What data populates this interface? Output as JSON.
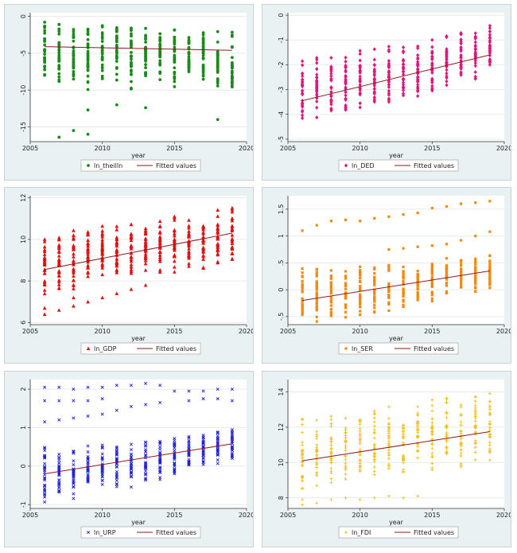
{
  "chart_data": [
    {
      "type": "scatter",
      "var": "ln_theilln",
      "xlabel": "year",
      "ylim": [
        -17,
        0.5
      ],
      "yticks": [
        0,
        -5,
        -10,
        -15
      ],
      "ytick_labels": [
        "0",
        "-5",
        "-10",
        "-15"
      ],
      "xlim": [
        2005,
        2020
      ],
      "xticks": [
        2005,
        2010,
        2015,
        2020
      ],
      "marker": "circle",
      "color": "#1a8a1a",
      "fit": [
        [
          2006,
          -4.1
        ],
        [
          2019,
          -4.6
        ]
      ],
      "legend": [
        "ln_theilln",
        "Fitted values"
      ],
      "ybands": [
        [
          2006,
          -8,
          -0.5
        ],
        [
          2007,
          -9,
          -1
        ],
        [
          2008,
          -9.5,
          -1
        ],
        [
          2009,
          -10,
          -1
        ],
        [
          2010,
          -9,
          -1
        ],
        [
          2011,
          -9,
          -1
        ],
        [
          2012,
          -10,
          -1
        ],
        [
          2013,
          -9,
          -1.5
        ],
        [
          2014,
          -9,
          -1.5
        ],
        [
          2015,
          -10,
          -1.5
        ],
        [
          2016,
          -9,
          -2
        ],
        [
          2017,
          -9.5,
          -2
        ],
        [
          2018,
          -10,
          -2
        ],
        [
          2019,
          -10,
          -2
        ]
      ],
      "outliers": [
        [
          2007,
          -16.4
        ],
        [
          2008,
          -15.5
        ],
        [
          2009,
          -16
        ],
        [
          2009,
          -12.7
        ],
        [
          2011,
          -12
        ],
        [
          2013,
          -12.4
        ],
        [
          2018,
          -14
        ]
      ]
    },
    {
      "type": "scatter",
      "var": "ln_DED",
      "xlabel": "year",
      "ylim": [
        -5.1,
        0.1
      ],
      "yticks": [
        0,
        -1,
        -2,
        -3,
        -4,
        -5
      ],
      "ytick_labels": [
        "0",
        "-1",
        "-2",
        "-3",
        "-4",
        "-5"
      ],
      "xlim": [
        2005,
        2020
      ],
      "xticks": [
        2005,
        2010,
        2015,
        2020
      ],
      "marker": "diamond",
      "color": "#e0157a",
      "fit": [
        [
          2006,
          -3.45
        ],
        [
          2019,
          -1.6
        ]
      ],
      "legend": [
        "ln_DED",
        "Fitted values"
      ],
      "ybands": [
        [
          2006,
          -4.6,
          -1.7
        ],
        [
          2007,
          -4.2,
          -1.6
        ],
        [
          2008,
          -4,
          -1.6
        ],
        [
          2009,
          -3.9,
          -1.5
        ],
        [
          2010,
          -3.8,
          -1.4
        ],
        [
          2011,
          -3.7,
          -1.3
        ],
        [
          2012,
          -3.6,
          -1.2
        ],
        [
          2013,
          -3.4,
          -1.1
        ],
        [
          2014,
          -3.3,
          -1.0
        ],
        [
          2015,
          -3.1,
          -0.9
        ],
        [
          2016,
          -3.0,
          -0.8
        ],
        [
          2017,
          -2.8,
          -0.6
        ],
        [
          2018,
          -2.6,
          -0.4
        ],
        [
          2019,
          -2.5,
          -0.1
        ]
      ],
      "outliers": []
    },
    {
      "type": "scatter",
      "var": "ln_GDP",
      "xlabel": "year",
      "ylim": [
        5.9,
        12.1
      ],
      "yticks": [
        6,
        8,
        10,
        12
      ],
      "ytick_labels": [
        "6",
        "8",
        "10",
        "12"
      ],
      "xlim": [
        2005,
        2020
      ],
      "xticks": [
        2005,
        2010,
        2015,
        2020
      ],
      "marker": "triangle",
      "color": "#e01010",
      "fit": [
        [
          2006,
          8.55
        ],
        [
          2019,
          10.3
        ]
      ],
      "legend": [
        "ln_GDP",
        "Fitted values"
      ],
      "ybands": [
        [
          2006,
          7.2,
          10.2
        ],
        [
          2007,
          7.4,
          10.3
        ],
        [
          2008,
          7.6,
          10.5
        ],
        [
          2009,
          7.8,
          10.6
        ],
        [
          2010,
          7.9,
          10.7
        ],
        [
          2011,
          8.0,
          10.8
        ],
        [
          2012,
          8.1,
          10.9
        ],
        [
          2013,
          8.2,
          11.0
        ],
        [
          2014,
          8.3,
          11.1
        ],
        [
          2015,
          8.4,
          11.2
        ],
        [
          2016,
          8.5,
          11.3
        ],
        [
          2017,
          8.6,
          11.4
        ],
        [
          2018,
          8.7,
          11.5
        ],
        [
          2019,
          8.8,
          11.6
        ]
      ],
      "outliers": [
        [
          2006,
          6.4
        ],
        [
          2006,
          6.7
        ],
        [
          2007,
          6.6
        ],
        [
          2008,
          6.8
        ],
        [
          2008,
          7.2
        ],
        [
          2009,
          7.0
        ],
        [
          2010,
          7.2
        ],
        [
          2011,
          7.4
        ],
        [
          2012,
          7.6
        ],
        [
          2013,
          7.8
        ]
      ]
    },
    {
      "type": "scatter",
      "var": "ln_SER",
      "xlabel": "year",
      "ylim": [
        -0.65,
        1.75
      ],
      "yticks": [
        -0.5,
        0,
        0.5,
        1,
        1.5
      ],
      "ytick_labels": [
        "-.5",
        "0",
        ".5",
        "1",
        "1.5"
      ],
      "xlim": [
        2005,
        2020
      ],
      "xticks": [
        2005,
        2010,
        2015,
        2020
      ],
      "marker": "square",
      "color": "#f08a10",
      "fit": [
        [
          2006,
          -0.2
        ],
        [
          2019,
          0.35
        ]
      ],
      "legend": [
        "ln_SER",
        "Fitted values"
      ],
      "ybands": [
        [
          2006,
          -0.6,
          0.4
        ],
        [
          2007,
          -0.6,
          0.4
        ],
        [
          2008,
          -0.55,
          0.4
        ],
        [
          2009,
          -0.55,
          0.45
        ],
        [
          2010,
          -0.55,
          0.5
        ],
        [
          2011,
          -0.55,
          0.5
        ],
        [
          2012,
          -0.45,
          0.5
        ],
        [
          2013,
          -0.4,
          0.5
        ],
        [
          2014,
          -0.35,
          0.5
        ],
        [
          2015,
          -0.25,
          0.55
        ],
        [
          2016,
          -0.1,
          0.6
        ],
        [
          2017,
          0.0,
          0.6
        ],
        [
          2018,
          -0.05,
          0.6
        ],
        [
          2019,
          0.0,
          0.65
        ]
      ],
      "outliers": [
        [
          2006,
          1.1
        ],
        [
          2007,
          1.2
        ],
        [
          2008,
          1.28
        ],
        [
          2009,
          1.3
        ],
        [
          2010,
          1.28
        ],
        [
          2011,
          1.33
        ],
        [
          2012,
          1.36
        ],
        [
          2013,
          1.4
        ],
        [
          2014,
          1.43
        ],
        [
          2015,
          1.52
        ],
        [
          2016,
          1.55
        ],
        [
          2017,
          1.6
        ],
        [
          2018,
          1.62
        ],
        [
          2019,
          1.65
        ],
        [
          2012,
          0.75
        ],
        [
          2013,
          0.77
        ],
        [
          2014,
          0.8
        ],
        [
          2015,
          0.82
        ],
        [
          2016,
          0.85
        ],
        [
          2017,
          0.92
        ],
        [
          2018,
          1.0
        ],
        [
          2019,
          1.08
        ]
      ]
    },
    {
      "type": "scatter",
      "var": "ln_URP",
      "xlabel": "year",
      "ylim": [
        -1.1,
        2.25
      ],
      "yticks": [
        -1,
        0,
        1,
        2
      ],
      "ytick_labels": [
        "-1",
        "0",
        "1",
        "2"
      ],
      "xlim": [
        2005,
        2020
      ],
      "xticks": [
        2005,
        2010,
        2015,
        2020
      ],
      "marker": "x",
      "color": "#2222dd",
      "fit": [
        [
          2006,
          -0.2
        ],
        [
          2019,
          0.58
        ]
      ],
      "legend": [
        "ln_URP",
        "Fitted values"
      ],
      "ybands": [
        [
          2006,
          -0.95,
          0.55
        ],
        [
          2007,
          -0.9,
          0.5
        ],
        [
          2008,
          -0.85,
          0.5
        ],
        [
          2009,
          -0.8,
          0.55
        ],
        [
          2010,
          -0.7,
          0.55
        ],
        [
          2011,
          -0.6,
          0.6
        ],
        [
          2012,
          -0.55,
          0.6
        ],
        [
          2013,
          -0.45,
          0.65
        ],
        [
          2014,
          -0.35,
          0.7
        ],
        [
          2015,
          -0.2,
          0.75
        ],
        [
          2016,
          -0.1,
          0.8
        ],
        [
          2017,
          -0.05,
          0.85
        ],
        [
          2018,
          0.0,
          0.9
        ],
        [
          2019,
          0.05,
          0.95
        ]
      ],
      "outliers": [
        [
          2006,
          2.05
        ],
        [
          2007,
          2.05
        ],
        [
          2008,
          2.0
        ],
        [
          2009,
          2.05
        ],
        [
          2010,
          2.05
        ],
        [
          2011,
          2.1
        ],
        [
          2012,
          2.1
        ],
        [
          2013,
          2.15
        ],
        [
          2014,
          2.1
        ],
        [
          2015,
          1.95
        ],
        [
          2016,
          1.95
        ],
        [
          2017,
          1.95
        ],
        [
          2018,
          2.0
        ],
        [
          2019,
          2.0
        ],
        [
          2006,
          1.7
        ],
        [
          2007,
          1.7
        ],
        [
          2008,
          1.7
        ],
        [
          2009,
          1.7
        ],
        [
          2010,
          1.75
        ],
        [
          2006,
          1.15
        ],
        [
          2007,
          1.2
        ],
        [
          2008,
          1.25
        ],
        [
          2009,
          1.3
        ],
        [
          2010,
          1.35
        ],
        [
          2011,
          1.45
        ],
        [
          2012,
          1.55
        ],
        [
          2013,
          1.6
        ],
        [
          2014,
          1.65
        ],
        [
          2016,
          1.7
        ],
        [
          2017,
          1.75
        ],
        [
          2018,
          1.75
        ],
        [
          2019,
          1.7
        ]
      ]
    },
    {
      "type": "scatter",
      "var": "ln_FDI",
      "xlabel": "year",
      "ylim": [
        7.4,
        14.7
      ],
      "yticks": [
        8,
        10,
        12,
        14
      ],
      "ytick_labels": [
        "8",
        "10",
        "12",
        "14"
      ],
      "xlim": [
        2005,
        2020
      ],
      "xticks": [
        2005,
        2010,
        2015,
        2020
      ],
      "marker": "plus",
      "color": "#f0c020",
      "fit": [
        [
          2006,
          10.1
        ],
        [
          2019,
          11.75
        ]
      ],
      "legend": [
        "ln_FDI",
        "Fitted values"
      ],
      "ybands": [
        [
          2006,
          8.5,
          12.6
        ],
        [
          2007,
          8.6,
          12.7
        ],
        [
          2008,
          8.8,
          12.8
        ],
        [
          2009,
          8.9,
          13.0
        ],
        [
          2010,
          9.0,
          13.0
        ],
        [
          2011,
          9.1,
          13.1
        ],
        [
          2012,
          9.2,
          13.2
        ],
        [
          2013,
          9.3,
          13.3
        ],
        [
          2014,
          9.4,
          13.5
        ],
        [
          2015,
          9.5,
          13.6
        ],
        [
          2016,
          9.6,
          13.8
        ],
        [
          2017,
          9.7,
          14.0
        ],
        [
          2018,
          9.8,
          14.3
        ],
        [
          2019,
          9.9,
          14.5
        ]
      ],
      "outliers": [
        [
          2006,
          7.6
        ],
        [
          2006,
          7.9
        ],
        [
          2007,
          7.7
        ],
        [
          2008,
          7.9
        ],
        [
          2009,
          8.0
        ],
        [
          2010,
          7.9
        ],
        [
          2011,
          8.0
        ],
        [
          2012,
          8.1
        ],
        [
          2013,
          8.0
        ],
        [
          2014,
          8.1
        ]
      ]
    }
  ]
}
